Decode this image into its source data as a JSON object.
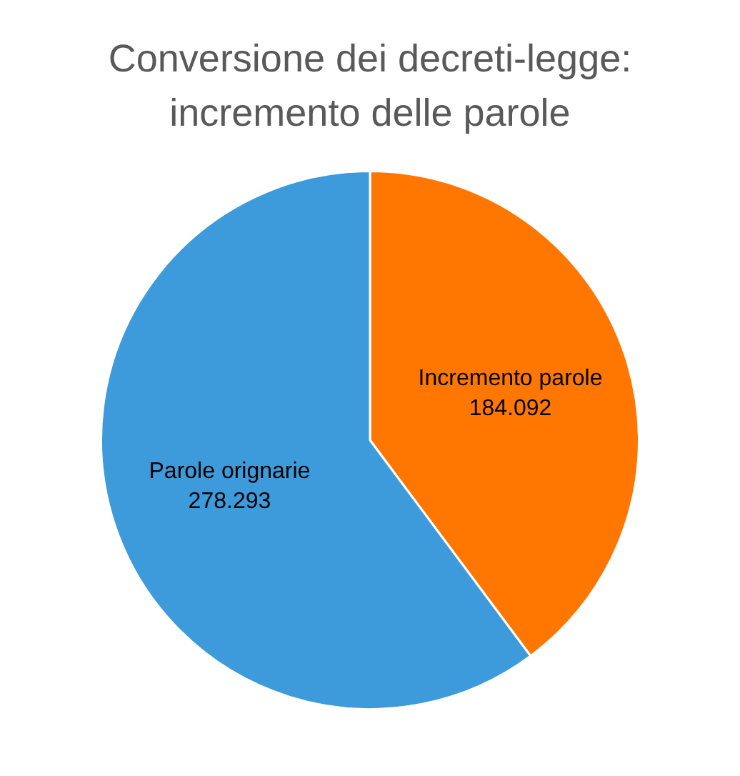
{
  "chart_data": {
    "type": "pie",
    "title": "Conversione dei decreti-legge: incremento delle parole",
    "categories": [
      "Incremento parole",
      "Parole orignarie"
    ],
    "values": [
      184092,
      278293
    ],
    "value_labels": [
      "184.092",
      "278.293"
    ],
    "colors": [
      "#ff7700",
      "#3d9bdb"
    ],
    "legend": false
  }
}
